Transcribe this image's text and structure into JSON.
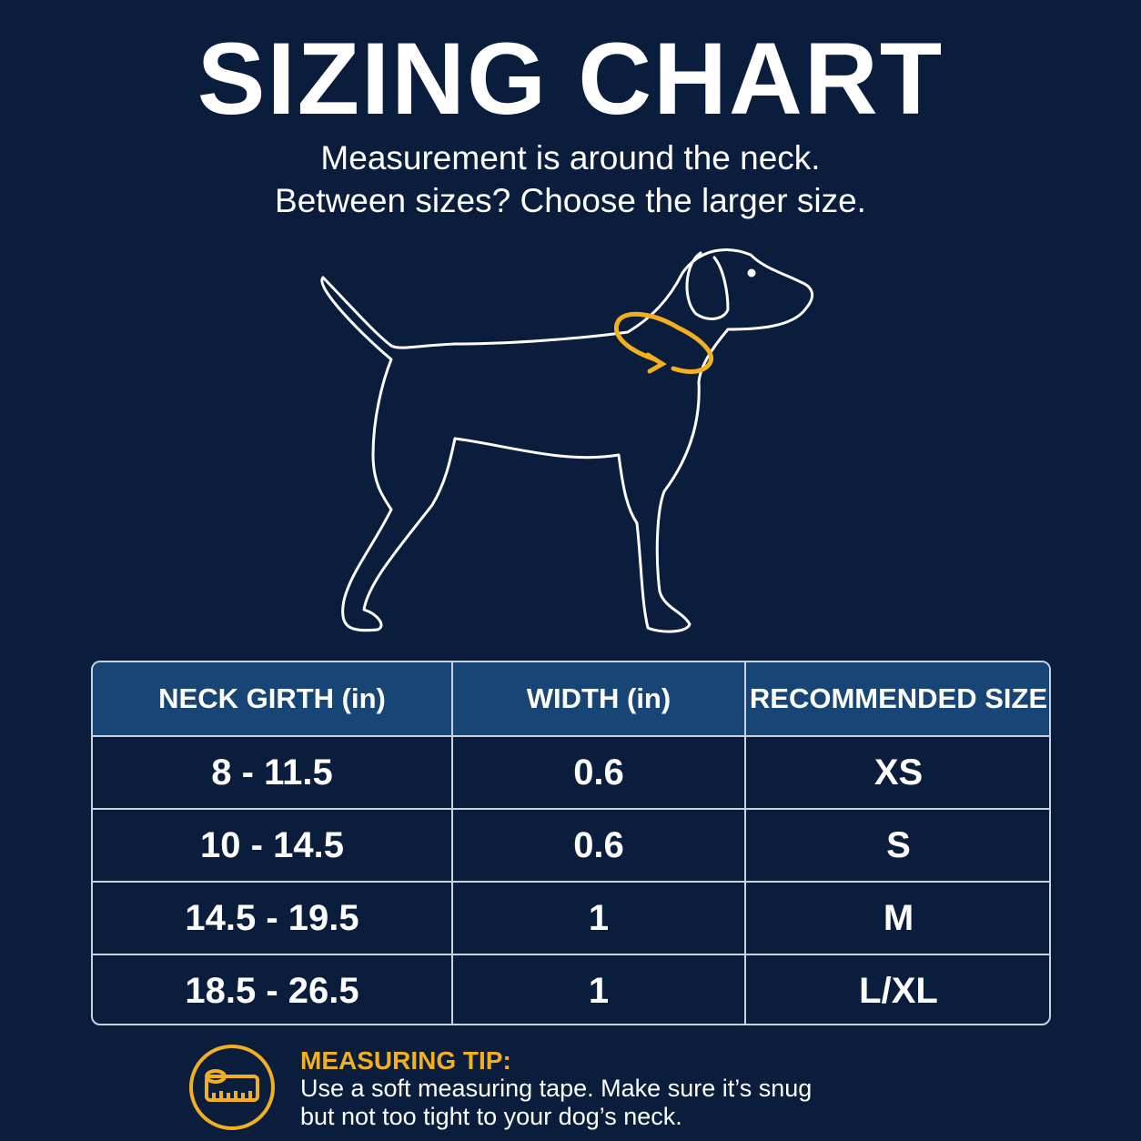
{
  "header": {
    "title": "SIZING CHART",
    "subtitle": [
      "Measurement is around the neck.",
      "Between sizes? Choose the larger size."
    ]
  },
  "table": {
    "columns": [
      "NECK GIRTH (in)",
      "WIDTH (in)",
      "RECOMMENDED SIZE"
    ],
    "rows": [
      [
        "8 - 11.5",
        "0.6",
        "XS"
      ],
      [
        "10 - 14.5",
        "0.6",
        "S"
      ],
      [
        "14.5 - 19.5",
        "1",
        "M"
      ],
      [
        "18.5 - 26.5",
        "1",
        "L/XL"
      ]
    ]
  },
  "tip": {
    "title": "MEASURING TIP:",
    "lines": [
      "Use a soft measuring tape. Make sure it’s snug",
      "but not too tight to your dog’s neck."
    ]
  }
}
